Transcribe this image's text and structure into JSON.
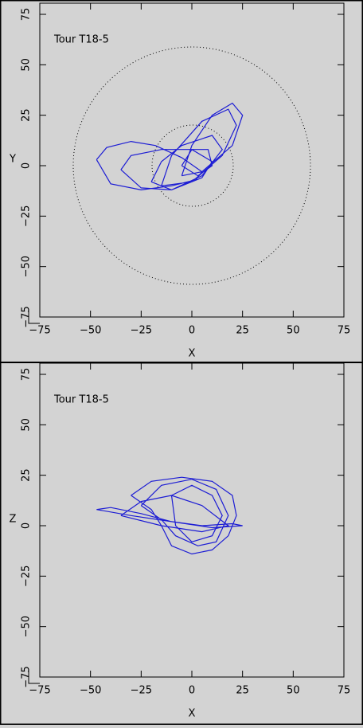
{
  "chart_data": [
    {
      "type": "line",
      "annotation": "Tour T18-5",
      "xlabel": "X",
      "ylabel": "Y",
      "xlim": [
        -75,
        75
      ],
      "ylim": [
        -75,
        75
      ],
      "xticks": [
        {
          "value": -75,
          "label": "−75"
        },
        {
          "value": -50,
          "label": "−50"
        },
        {
          "value": -25,
          "label": "−25"
        },
        0,
        25,
        50,
        75
      ],
      "yticks": [
        {
          "value": -75,
          "label": "−75"
        },
        {
          "value": -50,
          "label": "−50"
        },
        {
          "value": -25,
          "label": "−25"
        },
        0,
        25,
        50,
        75
      ],
      "x": [
        -47,
        -42,
        -30,
        -18,
        -5,
        5,
        2,
        -10,
        -25,
        -40,
        -47,
        null,
        -35,
        -30,
        -15,
        0,
        10,
        5,
        -10,
        -25,
        -35,
        null,
        -5,
        0,
        10,
        20,
        25,
        20,
        5,
        -5,
        null,
        -15,
        -10,
        5,
        18,
        22,
        15,
        0,
        -15,
        null,
        -20,
        -15,
        -5,
        10,
        15,
        5,
        -10,
        -20,
        null,
        -5,
        0,
        8,
        10,
        3,
        -5
      ],
      "series": [
        {
          "color": "#1c1cd4",
          "values": [
            3,
            9,
            12,
            10,
            4,
            -3,
            -7,
            -10,
            -12,
            -9,
            3,
            null,
            -2,
            5,
            8,
            8,
            2,
            -6,
            -12,
            -11,
            -2,
            null,
            -5,
            10,
            25,
            31,
            25,
            10,
            -3,
            -5,
            null,
            -10,
            5,
            22,
            28,
            20,
            5,
            -8,
            -10,
            null,
            -8,
            2,
            10,
            15,
            8,
            -5,
            -12,
            -8,
            null,
            0,
            8,
            8,
            0,
            -5,
            0
          ]
        }
      ]
    },
    {
      "type": "line",
      "annotation": "Tour T18-5",
      "xlabel": "X",
      "ylabel": "Z",
      "xlim": [
        -75,
        75
      ],
      "ylim": [
        -75,
        75
      ],
      "xticks": [
        {
          "value": -75,
          "label": "−75"
        },
        {
          "value": -50,
          "label": "−50"
        },
        {
          "value": -25,
          "label": "−25"
        },
        0,
        25,
        50,
        75
      ],
      "yticks": [
        {
          "value": -75,
          "label": "−75"
        },
        {
          "value": -50,
          "label": "−50"
        },
        {
          "value": -25,
          "label": "−25"
        },
        0,
        25,
        50,
        75
      ],
      "x": [
        -47,
        -40,
        -25,
        -10,
        5,
        20,
        25,
        10,
        -10,
        -30,
        -47,
        null,
        -30,
        -20,
        -5,
        10,
        20,
        22,
        18,
        10,
        0,
        -10,
        -15,
        -20,
        -30,
        null,
        -25,
        -15,
        0,
        12,
        18,
        12,
        3,
        -8,
        -15,
        -25,
        null,
        -10,
        0,
        10,
        15,
        10,
        0,
        -8,
        -10,
        null,
        -35,
        -25,
        -10,
        5,
        18,
        5,
        -15,
        -35
      ],
      "series": [
        {
          "color": "#1c1cd4",
          "values": [
            8,
            9,
            6,
            2,
            0,
            1,
            0,
            -1,
            2,
            5,
            8,
            null,
            15,
            22,
            24,
            22,
            15,
            5,
            -5,
            -12,
            -14,
            -10,
            0,
            8,
            15,
            null,
            10,
            20,
            23,
            18,
            5,
            -8,
            -10,
            -5,
            3,
            10,
            null,
            15,
            20,
            15,
            5,
            -5,
            -8,
            0,
            15,
            null,
            5,
            12,
            15,
            10,
            0,
            -3,
            0,
            5
          ]
        }
      ]
    }
  ]
}
